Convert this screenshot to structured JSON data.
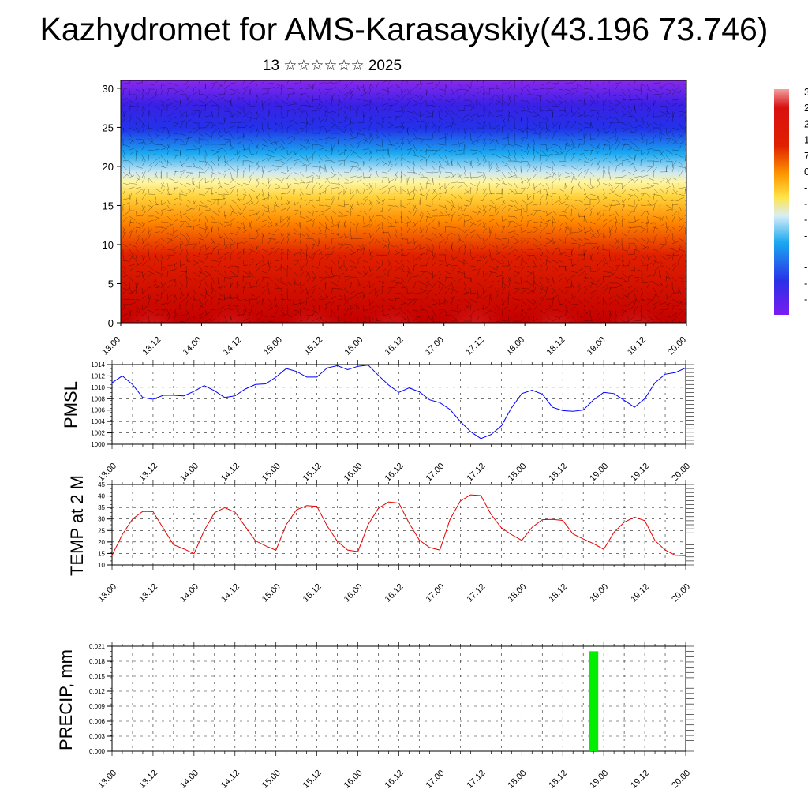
{
  "title": "Kazhydromet for AMS-Karasayskiy(43.196 73.746)",
  "subtitle": "13 ☆☆☆☆☆☆ 2025",
  "time_ticks": [
    "13.00",
    "13.12",
    "14.00",
    "14.12",
    "15.00",
    "15.12",
    "16.00",
    "16.12",
    "17.00",
    "17.12",
    "18.00",
    "18.12",
    "19.00",
    "19.12",
    "20.00"
  ],
  "chart_data": [
    {
      "type": "heatmap",
      "name": "cross-section",
      "x": [
        "13.00",
        "13.12",
        "14.00",
        "14.12",
        "15.00",
        "15.12",
        "16.00",
        "16.12",
        "17.00",
        "17.12",
        "18.00",
        "18.12",
        "19.00",
        "19.12",
        "20.00"
      ],
      "ylim": [
        0,
        31
      ],
      "yticks": [
        0,
        5,
        10,
        15,
        20,
        25,
        30
      ],
      "colorbar_labels": [
        "3",
        "2",
        "2",
        "1",
        "7",
        "0",
        "-",
        "-",
        "-",
        "-",
        "-",
        "-",
        "-",
        "-"
      ],
      "colors": {
        "low": "#7a1cf0",
        "mid": "#ffe44a",
        "high": "#d40000"
      },
      "vector_overlay": true
    },
    {
      "type": "line",
      "ylabel": "PMSL",
      "x": [
        "13.00",
        "13.03",
        "13.06",
        "13.09",
        "13.12",
        "13.15",
        "13.18",
        "13.21",
        "14.00",
        "14.03",
        "14.06",
        "14.09",
        "14.12",
        "14.15",
        "14.18",
        "14.21",
        "15.00",
        "15.03",
        "15.06",
        "15.09",
        "15.12",
        "15.15",
        "15.18",
        "15.21",
        "16.00",
        "16.03",
        "16.06",
        "16.09",
        "16.12",
        "16.15",
        "16.18",
        "16.21",
        "17.00",
        "17.03",
        "17.06",
        "17.09",
        "17.12",
        "17.15",
        "17.18",
        "17.21",
        "18.00",
        "18.03",
        "18.06",
        "18.09",
        "18.12",
        "18.15",
        "18.18",
        "18.21",
        "19.00",
        "19.03",
        "19.06",
        "19.09",
        "19.12",
        "19.15",
        "19.18",
        "19.21",
        "20.00"
      ],
      "values": [
        1010.8,
        1012,
        1010.5,
        1008.2,
        1007.9,
        1008.6,
        1008.6,
        1008.5,
        1009.3,
        1010.3,
        1009.4,
        1008.2,
        1008.5,
        1009.7,
        1010.5,
        1010.6,
        1011.8,
        1013.3,
        1012.8,
        1011.8,
        1011.8,
        1013.4,
        1013.8,
        1013.1,
        1013.7,
        1013.9,
        1012.1,
        1010.4,
        1009.1,
        1009.9,
        1009.2,
        1007.8,
        1007.3,
        1006.1,
        1004,
        1002.2,
        1001,
        1001.7,
        1003.2,
        1006.4,
        1008.9,
        1009.5,
        1008.8,
        1006.5,
        1005.9,
        1005.8,
        1006,
        1007.8,
        1009.1,
        1008.9,
        1007.7,
        1006.5,
        1008,
        1010.8,
        1012.3,
        1012.6,
        1013.4
      ],
      "ylim": [
        1000,
        1014
      ],
      "yticks": [
        1000,
        1002,
        1004,
        1006,
        1008,
        1010,
        1012,
        1014
      ],
      "color": "#0000ff",
      "grid": true
    },
    {
      "type": "line",
      "ylabel": "TEMP at 2 M",
      "x": [
        "13.00",
        "13.03",
        "13.06",
        "13.09",
        "13.12",
        "13.15",
        "13.18",
        "13.21",
        "14.00",
        "14.03",
        "14.06",
        "14.09",
        "14.12",
        "14.15",
        "14.18",
        "14.21",
        "15.00",
        "15.03",
        "15.06",
        "15.09",
        "15.12",
        "15.15",
        "15.18",
        "15.21",
        "16.00",
        "16.03",
        "16.06",
        "16.09",
        "16.12",
        "16.15",
        "16.18",
        "16.21",
        "17.00",
        "17.03",
        "17.06",
        "17.09",
        "17.12",
        "17.15",
        "17.18",
        "17.21",
        "18.00",
        "18.03",
        "18.06",
        "18.09",
        "18.12",
        "18.15",
        "18.18",
        "18.21",
        "19.00",
        "19.03",
        "19.06",
        "19.09",
        "19.12",
        "19.15",
        "19.18",
        "19.21",
        "20.00"
      ],
      "values": [
        14.2,
        23.2,
        30,
        33.3,
        33.2,
        26,
        18.8,
        17,
        14.9,
        25,
        32.7,
        34.9,
        33,
        26.7,
        20.5,
        18.3,
        16.4,
        27.5,
        34,
        35.8,
        35.5,
        27,
        20.3,
        16.5,
        15.8,
        27.6,
        34.6,
        37.4,
        36.9,
        28.2,
        20.8,
        17.6,
        16.5,
        29.9,
        37.8,
        40.5,
        40.2,
        32,
        26.2,
        23.2,
        20.7,
        26.4,
        29.7,
        29.8,
        29.4,
        23.5,
        21.3,
        19.3,
        16.8,
        24.2,
        28.6,
        30.8,
        29.3,
        20.6,
        16.5,
        14.2,
        14
      ],
      "ylim": [
        10,
        45
      ],
      "yticks": [
        10,
        15,
        20,
        25,
        30,
        35,
        40,
        45
      ],
      "color": "#e60000",
      "grid": true
    },
    {
      "type": "bar",
      "ylabel": "PRECIP, mm",
      "x": [
        "18.21"
      ],
      "values": [
        0.02
      ],
      "ylim": [
        0,
        0.021
      ],
      "yticks": [
        "0.000",
        "0.003",
        "0.006",
        "0.009",
        "0.012",
        "0.015",
        "0.018",
        "0.021"
      ],
      "color": "#00ee00",
      "grid": true
    }
  ]
}
